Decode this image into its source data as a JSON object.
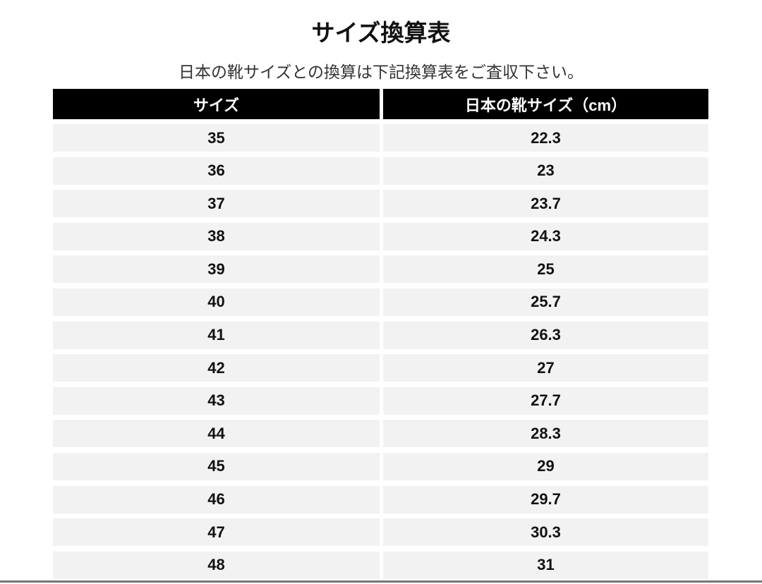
{
  "title": "サイズ換算表",
  "subtitle": "日本の靴サイズとの換算は下記換算表をご査収下さい。",
  "table": {
    "headers": [
      "サイズ",
      "日本の靴サイズ（cm）"
    ],
    "rows": [
      [
        "35",
        "22.3"
      ],
      [
        "36",
        "23"
      ],
      [
        "37",
        "23.7"
      ],
      [
        "38",
        "24.3"
      ],
      [
        "39",
        "25"
      ],
      [
        "40",
        "25.7"
      ],
      [
        "41",
        "26.3"
      ],
      [
        "42",
        "27"
      ],
      [
        "43",
        "27.7"
      ],
      [
        "44",
        "28.3"
      ],
      [
        "45",
        "29"
      ],
      [
        "46",
        "29.7"
      ],
      [
        "47",
        "30.3"
      ],
      [
        "48",
        "31"
      ]
    ]
  },
  "colors": {
    "header_bg": "#000000",
    "row_bg": "#f2f2f2"
  }
}
